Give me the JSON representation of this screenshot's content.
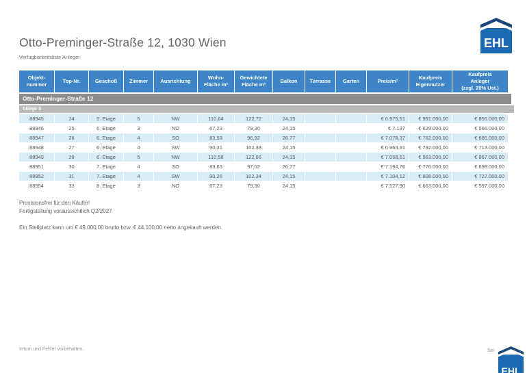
{
  "page": {
    "title": "Otto-Preminger-Straße 12, 1030 Wien",
    "subtitle": "Verfügbarkeitsliste Anleger"
  },
  "logo": {
    "text": "EHL"
  },
  "table": {
    "columns": [
      "Objekt-\nnummer",
      "Top-Nr.",
      "Geschoß",
      "Zimmer",
      "Ausrichtung",
      "Wohn-\nFläche m²",
      "Gewichtete\nFläche m²",
      "Balkon",
      "Terrasse",
      "Garten",
      "Preis/m²",
      "Kaufpreis\nEigennutzer",
      "Kaufpreis\nAnleger\n(zzgl. 20% Ust.)"
    ],
    "group_row": "Otto-Preminger-Straße 12",
    "subgroup_row": "Stiege 3",
    "rows": [
      [
        "88945",
        "24",
        "5. Etage",
        "5",
        "NW",
        "110,64",
        "122,72",
        "24,15",
        "",
        "",
        "€ 6.975,51",
        "€ 951.000,00",
        "€ 856.000,00"
      ],
      [
        "88946",
        "25",
        "6. Etage",
        "3",
        "NO",
        "67,23",
        "79,30",
        "24,15",
        "",
        "",
        "€ 7.137",
        "€ 629.000,00",
        "€ 566.000,00"
      ],
      [
        "88947",
        "26",
        "6. Etage",
        "4",
        "SO",
        "83,53",
        "96,92",
        "26,77",
        "",
        "",
        "€ 7.078,37",
        "€ 762.000,00",
        "€ 686.000,00"
      ],
      [
        "88948",
        "27",
        "6. Etage",
        "4",
        "SW",
        "90,31",
        "102,38",
        "24,15",
        "",
        "",
        "€ 6.963,91",
        "€ 792.000,00",
        "€ 713.000,00"
      ],
      [
        "88949",
        "28",
        "6. Etage",
        "5",
        "NW",
        "110,58",
        "122,66",
        "24,15",
        "",
        "",
        "€ 7.068,61",
        "€ 963.000,00",
        "€ 867.000,00"
      ],
      [
        "88951",
        "30",
        "7. Etage",
        "4",
        "SO",
        "83,63",
        "97,02",
        "26,77",
        "",
        "",
        "€ 7.194,76",
        "€ 776.000,00",
        "€ 698.000,00"
      ],
      [
        "88952",
        "31",
        "7. Etage",
        "4",
        "SW",
        "90,26",
        "102,34",
        "24,15",
        "",
        "",
        "€ 7.104,12",
        "€ 808.000,00",
        "€ 727.000,00"
      ],
      [
        "88954",
        "33",
        "8. Etage",
        "3",
        "NO",
        "67,23",
        "79,30",
        "24,15",
        "",
        "",
        "€ 7.527,90",
        "€ 663.000,00",
        "€ 597.000,00"
      ]
    ]
  },
  "notes": [
    "Provisionsfrei für den Käufer!",
    "Fertigstellung voraussichtlich Q2/2027",
    "Ein Stellplatz kann um € 49.000,00 brutto bzw. € 44.100,00 netto angekauft werden."
  ],
  "footer": {
    "left": "Irrtum und Fehler vorbehalten.",
    "right": "Sei"
  },
  "colors": {
    "header_blue": "#3d85c6",
    "group_gray": "#8b8b8b",
    "subgroup_gray": "#b9b9b9",
    "row_alt_blue": "#d9edf7",
    "logo_blue": "#1b69b1",
    "logo_navy": "#17497d",
    "text_gray": "#595959"
  }
}
